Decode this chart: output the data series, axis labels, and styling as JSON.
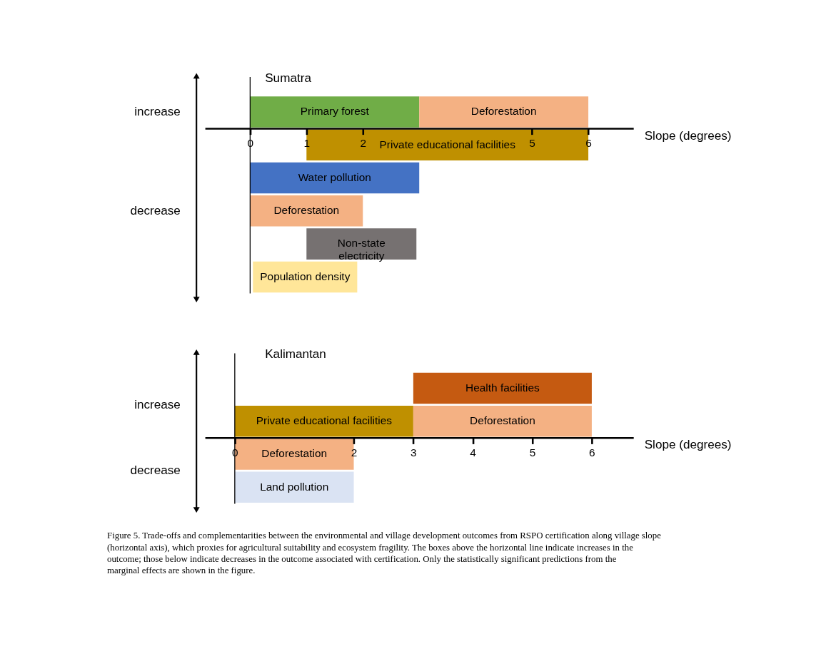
{
  "chart_data": [
    {
      "type": "bar",
      "orientation": "horizontal",
      "title": "Sumatra",
      "xlabel": "Slope (degrees)",
      "categories": [
        null,
        null,
        null,
        null,
        null,
        null
      ],
      "series": [
        {
          "name": "Primary forest",
          "color": "#70ad47",
          "values": [
            3,
            null,
            null,
            null,
            null,
            null
          ],
          "base": [
            0,
            null,
            null,
            null,
            null,
            null
          ]
        },
        {
          "name": "Deforestation",
          "color": "#f4b183",
          "values": [
            3,
            null,
            null,
            2,
            null,
            null
          ],
          "base": [
            3,
            null,
            null,
            0,
            null,
            null
          ]
        },
        {
          "name": "Private educational facilities",
          "color": "#bf9000",
          "values": [
            null,
            5,
            null,
            null,
            null,
            null
          ],
          "base": [
            null,
            1,
            null,
            null,
            null,
            null
          ]
        },
        {
          "name": "Water pollution",
          "color": "#4472c4",
          "values": [
            null,
            null,
            3,
            null,
            null,
            null
          ],
          "base": [
            null,
            null,
            0,
            null,
            null,
            null
          ]
        },
        {
          "name": "Non-state electricity",
          "color": "#767171",
          "values": [
            null,
            null,
            null,
            null,
            1.95,
            null
          ],
          "base": [
            null,
            null,
            null,
            null,
            1,
            null
          ]
        },
        {
          "name": "Population density",
          "color": "#ffe699",
          "values": [
            null,
            null,
            null,
            null,
            null,
            1.85
          ],
          "base": [
            null,
            null,
            null,
            null,
            null,
            0.05
          ]
        }
      ],
      "xlim": [
        -0.8,
        6.8
      ],
      "xticks": [
        0,
        1,
        2,
        5,
        6
      ],
      "ref_lines": [
        {
          "axis": "x",
          "value": 0
        }
      ],
      "annotations": [
        "increase",
        "decrease"
      ],
      "grid": false
    },
    {
      "type": "bar",
      "orientation": "horizontal",
      "title": "Kalimantan",
      "xlabel": "Slope (degrees)",
      "categories": [
        null,
        null,
        null,
        null
      ],
      "series": [
        {
          "name": "Health facilities",
          "color": "#c55a11",
          "values": [
            3,
            null,
            null,
            null
          ],
          "base": [
            3,
            null,
            null,
            null
          ]
        },
        {
          "name": "Private educational facilities",
          "color": "#bf9000",
          "values": [
            null,
            3,
            null,
            null
          ],
          "base": [
            null,
            0,
            null,
            null
          ]
        },
        {
          "name": "Deforestation",
          "color": "#f4b183",
          "values": [
            null,
            3,
            2,
            null
          ],
          "base": [
            null,
            3,
            0,
            null
          ]
        },
        {
          "name": "Land pollution",
          "color": "#dae3f3",
          "values": [
            null,
            null,
            null,
            2
          ],
          "base": [
            null,
            null,
            null,
            0
          ]
        }
      ],
      "xlim": [
        -0.5,
        6.7
      ],
      "xticks": [
        0,
        2,
        3,
        4,
        5,
        6
      ],
      "ref_lines": [
        {
          "axis": "x",
          "value": 0
        }
      ],
      "annotations": [
        "increase",
        "decrease",
        "Figure 5. Trade-offs and complementarities between the environmental and village development outcomes from RSPO certification along village slope (horizontal axis), which proxies for agricultural suitability and ecosystem fragility. The boxes above the horizontal line indicate increases in the outcome; those below indicate decreases in the outcome associated with certification. Only the statistically significant predictions from the marginal effects are shown in the figure."
      ],
      "grid": false
    }
  ]
}
